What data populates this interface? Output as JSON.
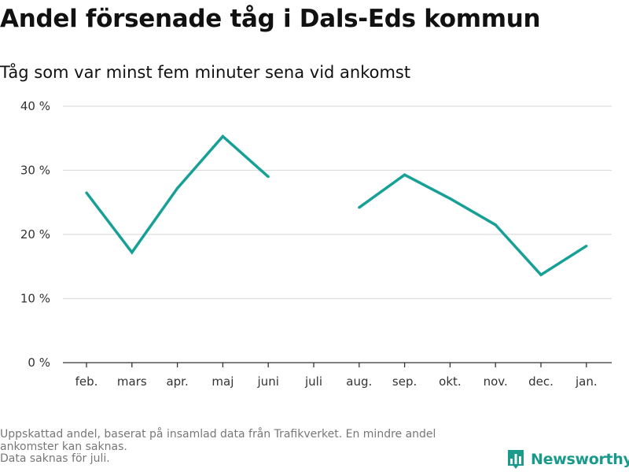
{
  "header": {
    "title": "Andel försenade tåg i Dals-Eds kommun",
    "subtitle": "Tåg som var minst fem minuter sena vid ankomst"
  },
  "chart_data": {
    "type": "line",
    "title": "Andel försenade tåg i Dals-Eds kommun",
    "subtitle": "Tåg som var minst fem minuter sena vid ankomst",
    "categories": [
      "feb.",
      "mars",
      "apr.",
      "maj",
      "juni",
      "juli",
      "aug.",
      "sep.",
      "okt.",
      "nov.",
      "dec.",
      "jan."
    ],
    "series": [
      {
        "values": [
          26.5,
          17.2,
          27.2,
          35.3,
          29.0,
          null,
          24.2,
          29.3,
          25.6,
          21.5,
          13.7,
          18.2
        ]
      }
    ],
    "yticks": [
      "0 %",
      "10 %",
      "20 %",
      "30 %",
      "40 %"
    ],
    "ylim": [
      0,
      40
    ],
    "grid": true,
    "line_color": "#17a096"
  },
  "footer": {
    "notes": [
      "Uppskattad andel, baserat på insamlad data från Trafikverket. En mindre andel",
      "ankomster kan saknas.",
      "Data saknas för juli."
    ],
    "brand": "Newsworthy",
    "brand_icon": "newsworthy-bar-chart-icon",
    "brand_color": "#1a9a8a"
  }
}
